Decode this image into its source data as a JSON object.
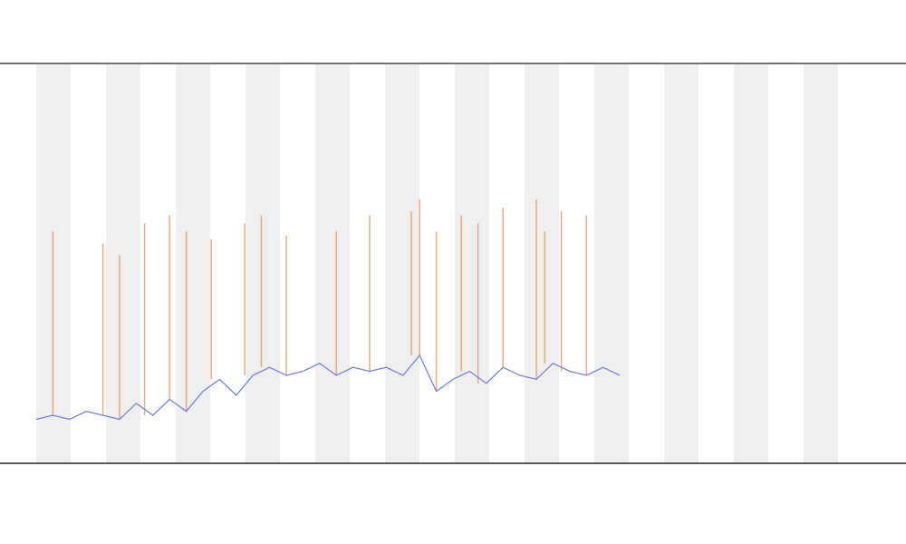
{
  "chart_data": {
    "type": "line",
    "x": [
      0,
      2,
      4,
      6,
      8,
      10,
      12,
      14,
      16,
      18,
      20,
      22,
      24,
      26,
      28,
      30,
      32,
      34,
      36,
      38,
      40,
      42,
      44,
      46,
      48,
      50,
      52,
      54,
      56,
      58,
      60,
      62,
      64,
      66,
      68,
      70
    ],
    "values": [
      11,
      12,
      11,
      13,
      12,
      11,
      15,
      12,
      16,
      13,
      18,
      21,
      17,
      22,
      24,
      22,
      23,
      25,
      22,
      24,
      23,
      24,
      22,
      27,
      18,
      21,
      23,
      20,
      24,
      22,
      21,
      25,
      23,
      22,
      24,
      22
    ],
    "color": "#6f78e0",
    "spikes": {
      "x": [
        2,
        8,
        10,
        13,
        16,
        18,
        21,
        25,
        27,
        30,
        36,
        40,
        45,
        46,
        48,
        51,
        53,
        56,
        60,
        61,
        63,
        66
      ],
      "values": [
        58,
        55,
        52,
        60,
        62,
        58,
        56,
        60,
        62,
        57,
        58,
        62,
        63,
        66,
        58,
        62,
        60,
        64,
        66,
        58,
        63,
        62
      ],
      "color": "#e0782a"
    },
    "xlim": [
      0,
      100
    ],
    "ylim": [
      0,
      100
    ]
  }
}
